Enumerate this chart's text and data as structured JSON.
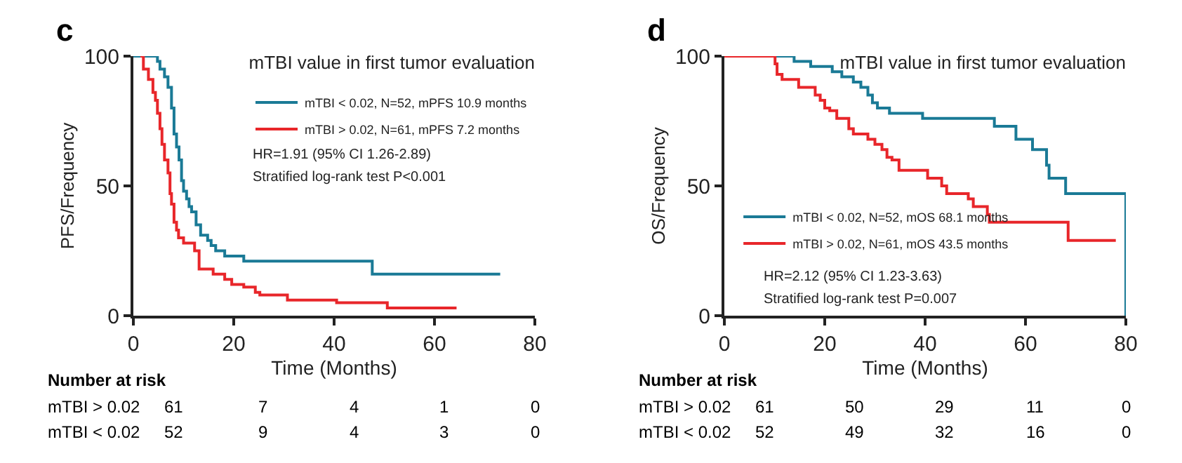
{
  "chart_data": [
    {
      "type": "step",
      "title": "mTBI value in first tumor evaluation",
      "xlabel": "Time (Months)",
      "ylabel": "PFS/Frequency",
      "xlim": [
        0,
        80
      ],
      "xticks": [
        0,
        20,
        40,
        60,
        80
      ],
      "ylim": [
        0,
        100
      ],
      "yticks": [
        0,
        50,
        100
      ],
      "grid": false,
      "legend": "top right",
      "marker": "none",
      "series": [
        {
          "name": "mTBI < 0.02, N=52, mPFS 10.9 months",
          "color": "#1a7a96",
          "x": [
            0,
            4.8,
            5.3,
            6.2,
            6.9,
            7.6,
            8.1,
            8.6,
            9.1,
            9.6,
            10,
            10.6,
            11.1,
            11.6,
            12.5,
            13.4,
            14.8,
            15.5,
            16.4,
            18.2,
            22,
            47.6,
            73.1
          ],
          "values": [
            100,
            98,
            95,
            92,
            88,
            80,
            70,
            65,
            60,
            52,
            48,
            45,
            42,
            40,
            35,
            31,
            29,
            27,
            25,
            23,
            21,
            16,
            16
          ]
        },
        {
          "name": "mTBI > 0.02, N=61, mPFS 7.2 months",
          "color": "#e8262a",
          "x": [
            1.4,
            2,
            3,
            3.9,
            4.4,
            4.8,
            5.3,
            5.7,
            6.2,
            6.9,
            7.3,
            7.6,
            8.1,
            8.6,
            9,
            10,
            12.2,
            13.1,
            15.9,
            18.2,
            19.6,
            22,
            24.3,
            25.2,
            30.7,
            40.5,
            50.6,
            64.4
          ],
          "values": [
            100,
            95,
            91,
            86,
            83,
            78,
            72,
            66,
            60,
            55,
            47,
            43,
            36,
            33,
            30,
            28,
            25,
            18,
            16,
            14,
            12,
            11,
            9,
            8,
            6,
            5,
            3,
            3
          ]
        }
      ],
      "annotations": [
        "c",
        "HR=1.91 (95% CI 1.26-2.89)",
        "Stratified log-rank test P<0.001",
        "Number at risk",
        "mTBI > 0.02",
        "61",
        "7",
        "4",
        "1",
        "0",
        "mTBI < 0.02",
        "52",
        "9",
        "4",
        "3",
        "0"
      ]
    },
    {
      "type": "step",
      "title": "mTBI value in first tumor evaluation",
      "xlabel": "Time (Months)",
      "ylabel": "OS/Frequency",
      "xlim": [
        0,
        80
      ],
      "xticks": [
        0,
        20,
        40,
        60,
        80
      ],
      "ylim": [
        0,
        100
      ],
      "yticks": [
        0,
        50,
        100
      ],
      "grid": false,
      "legend": "bottom left",
      "marker": "none",
      "series": [
        {
          "name": "mTBI < 0.02, N=52, mOS 68.1 months",
          "color": "#1a7a96",
          "x": [
            0,
            13.9,
            17.2,
            21.5,
            23.4,
            25.7,
            27.2,
            28.6,
            29.5,
            30.5,
            32.9,
            39.5,
            53.8,
            58.1,
            61.4,
            64.2,
            64.7,
            68,
            80
          ],
          "values": [
            100,
            98,
            96,
            94,
            92,
            90,
            88,
            85,
            82,
            80,
            78,
            76,
            73,
            68,
            64,
            58,
            53,
            47,
            0
          ]
        },
        {
          "name": "mTBI > 0.02, N=61, mOS 43.5 months",
          "color": "#e8262a",
          "x": [
            0,
            10.1,
            10.5,
            11.5,
            14.8,
            18.1,
            19.1,
            20,
            21,
            22.4,
            24.8,
            25.7,
            28.6,
            30,
            31.4,
            32.4,
            33.4,
            34.8,
            40.5,
            43.3,
            44.3,
            48.6,
            49.6,
            52.4,
            52.8,
            68.5,
            78
          ],
          "values": [
            100,
            97,
            93,
            91,
            88,
            85,
            83,
            80,
            79,
            76,
            72,
            70,
            68,
            66,
            64,
            61,
            60,
            56,
            53,
            50,
            47,
            45,
            42,
            39,
            36,
            29,
            29
          ]
        }
      ],
      "annotations": [
        "d",
        "HR=2.12 (95% CI 1.23-3.63)",
        "Stratified log-rank test P=0.007",
        "Number at risk",
        "mTBI > 0.02",
        "61",
        "50",
        "29",
        "11",
        "0",
        "mTBI < 0.02",
        "52",
        "49",
        "32",
        "16",
        "0"
      ]
    }
  ]
}
